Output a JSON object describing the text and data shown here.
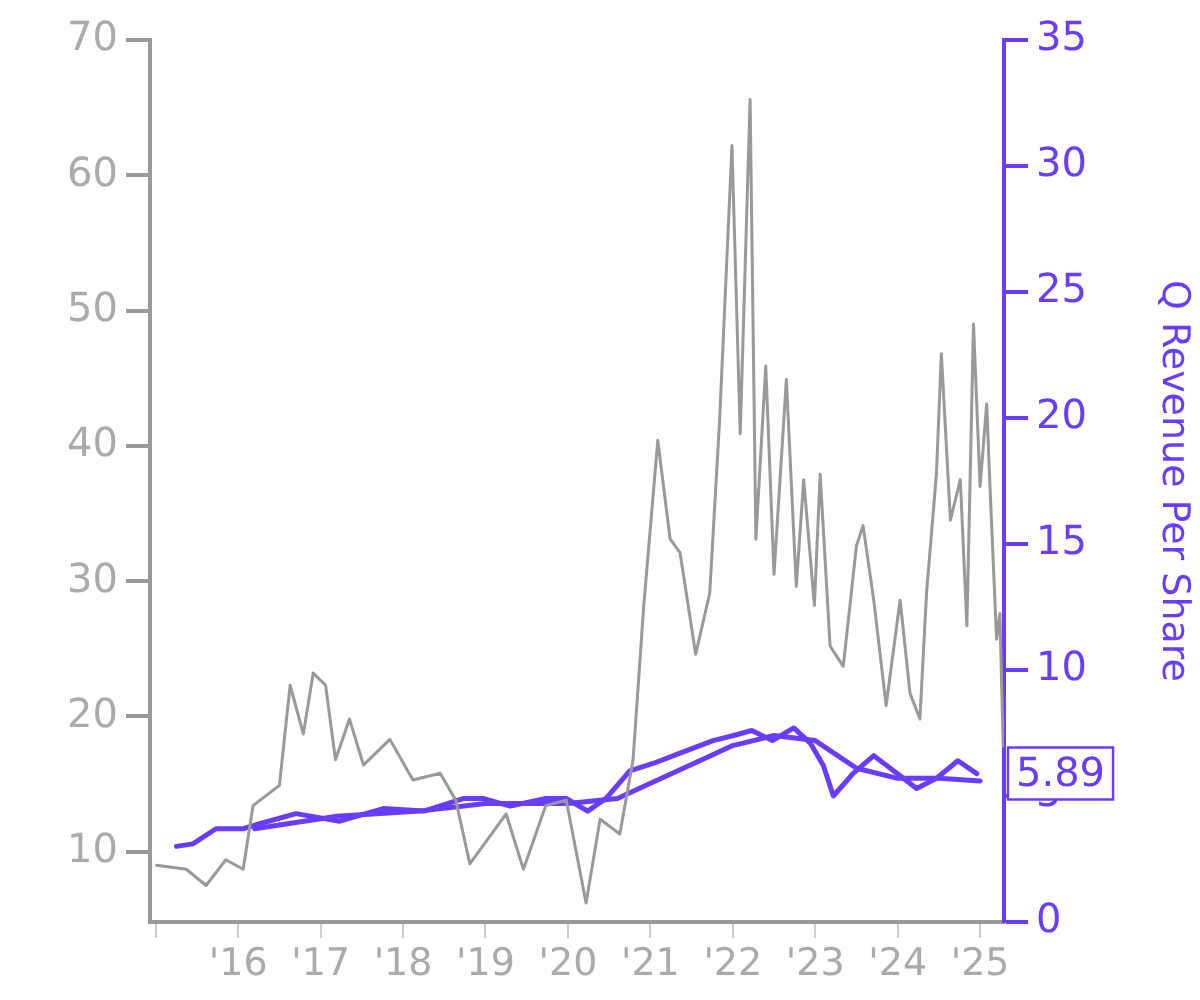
{
  "chart_data": {
    "type": "line",
    "y2label": "Q Revenue Per Share",
    "xlim": [
      2014.93,
      2025.29
    ],
    "xticks": [
      {
        "value": 2015,
        "label": null
      },
      {
        "value": 2016,
        "label": "'16"
      },
      {
        "value": 2017,
        "label": "'17"
      },
      {
        "value": 2018,
        "label": "'18"
      },
      {
        "value": 2019,
        "label": "'19"
      },
      {
        "value": 2020,
        "label": "'20"
      },
      {
        "value": 2021,
        "label": "'21"
      },
      {
        "value": 2022,
        "label": "'22"
      },
      {
        "value": 2023,
        "label": "'23"
      },
      {
        "value": 2024,
        "label": "'24"
      },
      {
        "value": 2025,
        "label": "'25"
      }
    ],
    "ylim": [
      4.8,
      70
    ],
    "yticks": [
      10,
      20,
      30,
      40,
      50,
      60,
      70
    ],
    "y2lim": [
      0,
      35
    ],
    "y2ticks": [
      0,
      5,
      10,
      15,
      20,
      25,
      30,
      35
    ],
    "grid": false,
    "legend": false,
    "marker": "none",
    "series": [
      {
        "color": "#999999",
        "x": [
          2015.01,
          2015.37,
          2015.61,
          2015.85,
          2016.06,
          2016.18,
          2016.5,
          2016.63,
          2016.79,
          2016.91,
          2017.06,
          2017.18,
          2017.35,
          2017.52,
          2017.84,
          2018.12,
          2018.45,
          2018.64,
          2018.81,
          2019.25,
          2019.46,
          2019.73,
          2019.98,
          2020.22,
          2020.39,
          2020.63,
          2020.79,
          2020.92,
          2021.09,
          2021.24,
          2021.36,
          2021.55,
          2021.72,
          2021.84,
          2021.99,
          2022.09,
          2022.21,
          2022.28,
          2022.4,
          2022.5,
          2022.65,
          2022.77,
          2022.86,
          2022.99,
          2023.06,
          2023.18,
          2023.34,
          2023.5,
          2023.58,
          2023.71,
          2023.86,
          2024.03,
          2024.15,
          2024.27,
          2024.35,
          2024.47,
          2024.53,
          2024.64,
          2024.76,
          2024.84,
          2024.92,
          2025.0,
          2025.08,
          2025.12,
          2025.2,
          2025.24,
          2025.28
        ],
        "values": [
          9.0,
          8.7,
          7.5,
          9.4,
          8.7,
          13.4,
          14.9,
          22.3,
          18.7,
          23.2,
          22.3,
          16.8,
          19.8,
          16.4,
          18.3,
          15.3,
          15.8,
          13.8,
          9.1,
          12.8,
          8.7,
          13.4,
          13.8,
          6.2,
          12.4,
          11.3,
          16.8,
          28.2,
          40.4,
          33.1,
          32.1,
          24.6,
          29.1,
          41.9,
          62.2,
          40.9,
          65.6,
          33.1,
          45.9,
          30.5,
          44.9,
          29.6,
          37.5,
          28.2,
          37.9,
          25.2,
          23.7,
          32.6,
          34.1,
          28.6,
          20.8,
          28.6,
          21.7,
          19.8,
          29.1,
          37.9,
          46.8,
          34.5,
          37.5,
          26.7,
          49.0,
          37.0,
          43.1,
          37.0,
          25.7,
          27.6,
          17.8
        ]
      },
      {
        "color": "#6a3cff",
        "axis": "y2",
        "x": [
          2016.2,
          2017.2,
          2018.2,
          2019.0,
          2020.0,
          2020.6,
          2021.2,
          2022.0,
          2022.5,
          2023.0,
          2023.5,
          2024.0,
          2024.5,
          2025.0
        ],
        "values": [
          3.7,
          4.2,
          4.4,
          4.7,
          4.7,
          4.9,
          5.8,
          7.0,
          7.4,
          7.2,
          6.1,
          5.7,
          5.7,
          5.6
        ]
      },
      {
        "color": "#6a3cff",
        "axis": "y2",
        "x": [
          2015.25,
          2015.45,
          2015.73,
          2016.06,
          2016.26,
          2016.7,
          2017.23,
          2017.76,
          2018.25,
          2018.73,
          2018.97,
          2019.3,
          2019.73,
          2019.98,
          2020.24,
          2020.46,
          2020.75,
          2021.04,
          2021.36,
          2021.76,
          2022.01,
          2022.23,
          2022.48,
          2022.74,
          2022.94,
          2023.1,
          2023.22,
          2023.46,
          2023.71,
          2023.99,
          2024.23,
          2024.47,
          2024.73,
          2024.96
        ],
        "values": [
          3.0,
          3.1,
          3.7,
          3.7,
          3.9,
          4.3,
          4.0,
          4.5,
          4.4,
          4.9,
          4.9,
          4.6,
          4.9,
          4.9,
          4.4,
          4.9,
          6.0,
          6.3,
          6.7,
          7.2,
          7.4,
          7.6,
          7.2,
          7.7,
          7.1,
          6.2,
          5.0,
          5.9,
          6.6,
          5.9,
          5.3,
          5.7,
          6.4,
          5.89
        ],
        "value_labels": [
          null,
          null,
          null,
          null,
          null,
          null,
          null,
          null,
          null,
          null,
          null,
          null,
          null,
          null,
          null,
          null,
          null,
          null,
          null,
          null,
          null,
          null,
          null,
          null,
          null,
          null,
          null,
          null,
          null,
          null,
          null,
          null,
          null,
          "5.89"
        ]
      }
    ]
  }
}
